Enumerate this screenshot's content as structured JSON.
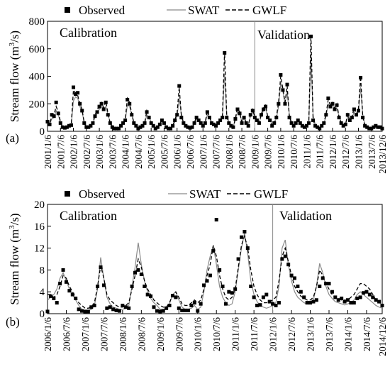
{
  "chart_data": [
    {
      "type": "line",
      "panel_label": "(a)",
      "ylabel_main": "Stream flow (m",
      "ylabel_sup": "3",
      "ylabel_tail": "/s)",
      "ylim": [
        0,
        800
      ],
      "yticks": [
        0,
        200,
        400,
        600,
        800
      ],
      "x_range_months": [
        0,
        155
      ],
      "xticks": [
        "2001/1/6",
        "2001/7/6",
        "2002/1/6",
        "2002/7/6",
        "2003/1/6",
        "2003/7/6",
        "2004/1/6",
        "2004/7/6",
        "2005/1/6",
        "2005/7/6",
        "2006/1/6",
        "2006/7/6",
        "2007/1/6",
        "2007/7/6",
        "2008/1/6",
        "2008/7/6",
        "2009/1/6",
        "2009/7/6",
        "2010/1/6",
        "2010/7/6",
        "2011/1/6",
        "2011/7/6",
        "2012/1/6",
        "2012/7/6",
        "2013/1/6",
        "2013/7/6",
        "2013/12/6"
      ],
      "legend": {
        "observed": "Observed",
        "swat": "SWAT",
        "gwlf": "GWLF",
        "placement": "top"
      },
      "annotations": {
        "calibration": "Calibration",
        "validation": "Validation"
      },
      "divider_month": 96,
      "series_names": [
        "Observed",
        "SWAT",
        "GWLF"
      ],
      "observed": [
        70,
        50,
        120,
        110,
        210,
        130,
        60,
        30,
        25,
        30,
        40,
        45,
        320,
        270,
        280,
        200,
        150,
        60,
        30,
        30,
        40,
        60,
        110,
        140,
        180,
        200,
        160,
        210,
        120,
        60,
        30,
        20,
        20,
        20,
        40,
        60,
        80,
        230,
        200,
        120,
        60,
        40,
        20,
        30,
        40,
        60,
        140,
        100,
        60,
        40,
        20,
        30,
        50,
        80,
        60,
        30,
        20,
        20,
        40,
        80,
        120,
        330,
        100,
        60,
        40,
        30,
        25,
        30,
        60,
        100,
        80,
        60,
        40,
        60,
        140,
        100,
        60,
        50,
        40,
        60,
        80,
        100,
        570,
        100,
        60,
        40,
        30,
        90,
        160,
        130,
        60,
        100,
        60,
        40,
        120,
        150,
        100,
        80,
        60,
        120,
        160,
        180,
        100,
        80,
        40,
        60,
        100,
        200,
        410,
        300,
        200,
        340,
        100,
        60,
        40,
        60,
        80,
        60,
        40,
        30,
        40,
        60,
        690,
        80,
        40,
        30,
        20,
        40,
        60,
        120,
        240,
        180,
        200,
        160,
        190,
        100,
        60,
        40,
        50,
        120,
        80,
        100,
        160,
        120,
        150,
        390,
        100,
        40,
        30,
        20,
        20,
        30,
        40,
        30,
        30,
        20
      ],
      "swat": [
        60,
        50,
        90,
        100,
        150,
        120,
        60,
        35,
        28,
        30,
        40,
        48,
        220,
        250,
        240,
        180,
        140,
        70,
        40,
        35,
        45,
        60,
        100,
        130,
        160,
        180,
        160,
        180,
        120,
        70,
        40,
        28,
        24,
        24,
        40,
        55,
        80,
        190,
        180,
        120,
        70,
        45,
        28,
        30,
        42,
        58,
        120,
        100,
        70,
        45,
        28,
        30,
        48,
        70,
        60,
        38,
        25,
        25,
        40,
        70,
        110,
        240,
        120,
        70,
        45,
        35,
        30,
        32,
        55,
        90,
        80,
        62,
        45,
        60,
        120,
        100,
        68,
        55,
        45,
        60,
        78,
        100,
        420,
        120,
        70,
        45,
        35,
        80,
        140,
        130,
        70,
        95,
        68,
        48,
        110,
        140,
        110,
        85,
        65,
        110,
        150,
        160,
        110,
        85,
        48,
        58,
        95,
        180,
        350,
        290,
        200,
        290,
        120,
        68,
        45,
        58,
        78,
        62,
        45,
        35,
        42,
        58,
        560,
        110,
        52,
        35,
        28,
        40,
        58,
        110,
        200,
        170,
        190,
        160,
        170,
        110,
        68,
        48,
        52,
        105,
        82,
        98,
        140,
        120,
        140,
        320,
        120,
        50,
        35,
        26,
        24,
        30,
        38,
        32,
        30,
        24
      ],
      "gwlf": [
        80,
        55,
        110,
        120,
        180,
        140,
        70,
        30,
        20,
        25,
        45,
        50,
        300,
        280,
        260,
        200,
        160,
        60,
        28,
        25,
        40,
        65,
        120,
        150,
        190,
        210,
        170,
        220,
        130,
        60,
        28,
        18,
        18,
        18,
        40,
        65,
        85,
        240,
        210,
        130,
        60,
        38,
        18,
        28,
        42,
        62,
        150,
        110,
        60,
        38,
        18,
        28,
        52,
        85,
        65,
        28,
        18,
        18,
        40,
        85,
        130,
        320,
        110,
        60,
        38,
        28,
        22,
        28,
        62,
        105,
        85,
        62,
        38,
        62,
        150,
        105,
        60,
        48,
        38,
        62,
        85,
        110,
        580,
        110,
        60,
        38,
        28,
        95,
        170,
        140,
        62,
        105,
        62,
        38,
        125,
        160,
        105,
        82,
        60,
        125,
        170,
        190,
        105,
        82,
        38,
        62,
        105,
        210,
        400,
        310,
        210,
        330,
        105,
        62,
        38,
        62,
        82,
        62,
        38,
        28,
        38,
        62,
        700,
        85,
        38,
        28,
        18,
        38,
        62,
        125,
        230,
        190,
        210,
        170,
        200,
        105,
        62,
        38,
        48,
        125,
        82,
        105,
        170,
        125,
        160,
        400,
        105,
        38,
        28,
        18,
        18,
        28,
        38,
        28,
        28,
        18
      ]
    },
    {
      "type": "line",
      "panel_label": "(b)",
      "ylabel_main": "Stream flow (m",
      "ylabel_sup": "3",
      "ylabel_tail": "/s)",
      "ylim": [
        0,
        20
      ],
      "yticks": [
        0,
        4,
        8,
        12,
        16,
        20
      ],
      "x_range_months": [
        0,
        107
      ],
      "xticks": [
        "2006/1/6",
        "2006/7/6",
        "2007/1/6",
        "2007/7/6",
        "2008/1/6",
        "2008/7/6",
        "2009/1/6",
        "2009/7/6",
        "2010/1/6",
        "2010/7/6",
        "2011/1/6",
        "2011/7/6",
        "2012/1/6",
        "2012/7/6",
        "2013/1/6",
        "2013/7/6",
        "2014/1/6",
        "2014/7/6",
        "2014/12/6"
      ],
      "legend": {
        "observed": "Observed",
        "swat": "SWAT",
        "gwlf": "GWLF",
        "placement": "top"
      },
      "annotations": {
        "calibration": "Calibration",
        "validation": "Validation"
      },
      "divider_month": 72,
      "series_names": [
        "Observed",
        "SWAT",
        "GWLF"
      ],
      "observed": [
        0.4,
        3.2,
        2.8,
        2.0,
        5.5,
        8.0,
        5.8,
        4.2,
        3.5,
        2.8,
        0.8,
        0.5,
        0.4,
        0.4,
        1.2,
        1.5,
        5.0,
        8.5,
        5.2,
        1.0,
        1.2,
        0.8,
        0.6,
        0.5,
        1.5,
        1.2,
        1.0,
        5.0,
        7.5,
        8.0,
        7.2,
        5.0,
        3.5,
        3.2,
        1.2,
        0.5,
        0.4,
        0.5,
        1.0,
        1.5,
        3.3,
        3.0,
        1.0,
        0.6,
        0.6,
        0.6,
        1.5,
        2.0,
        0.5,
        1.8,
        5.2,
        6.0,
        7.0,
        11.5,
        17.2,
        8.0,
        5.0,
        1.8,
        4.0,
        3.8,
        4.5,
        10.0,
        14.0,
        15.0,
        12.0,
        5.0,
        3.0,
        1.5,
        1.6,
        3.0,
        3.5,
        2.2,
        1.8,
        1.5,
        2.0,
        10.0,
        10.5,
        9.0,
        7.0,
        6.5,
        5.0,
        4.0,
        3.0,
        2.0,
        2.0,
        2.2,
        2.5,
        5.0,
        6.5,
        5.5,
        5.5,
        4.0,
        3.0,
        2.5,
        2.8,
        2.2,
        2.5,
        2.0,
        2.0,
        2.8,
        3.0,
        3.8,
        4.0,
        3.5,
        3.0,
        2.5,
        2.2,
        1.5
      ],
      "swat": [
        2.5,
        3.0,
        3.5,
        4.5,
        6.5,
        7.5,
        6.0,
        4.5,
        3.5,
        2.5,
        1.5,
        0.8,
        0.5,
        0.5,
        0.8,
        1.5,
        4.5,
        10.3,
        6.5,
        3.0,
        1.8,
        1.2,
        1.0,
        0.8,
        0.8,
        1.0,
        1.5,
        5.0,
        8.5,
        13.0,
        9.0,
        6.0,
        4.0,
        2.8,
        2.0,
        1.5,
        0.8,
        0.8,
        1.0,
        1.8,
        3.5,
        4.0,
        2.5,
        1.2,
        0.8,
        0.8,
        1.0,
        1.5,
        0.8,
        1.2,
        4.0,
        8.0,
        10.5,
        12.5,
        9.0,
        5.0,
        3.0,
        2.0,
        1.5,
        1.8,
        4.0,
        8.0,
        12.0,
        14.8,
        11.0,
        6.0,
        3.5,
        2.2,
        1.5,
        1.2,
        1.0,
        1.2,
        1.5,
        2.0,
        5.0,
        12.0,
        13.5,
        9.0,
        6.0,
        4.0,
        3.0,
        2.5,
        2.0,
        1.8,
        1.8,
        2.5,
        5.0,
        9.2,
        7.5,
        5.0,
        3.5,
        2.8,
        2.2,
        2.0,
        1.8,
        1.6,
        1.8,
        2.0,
        2.5,
        3.5,
        4.0,
        3.5,
        3.0,
        2.5,
        2.0,
        1.5,
        1.2,
        1.0
      ],
      "gwlf": [
        3.5,
        3.5,
        3.0,
        3.5,
        5.0,
        7.0,
        6.5,
        5.0,
        4.0,
        3.0,
        2.0,
        1.5,
        1.0,
        1.0,
        1.2,
        2.0,
        5.0,
        8.8,
        6.5,
        3.5,
        2.5,
        2.0,
        1.5,
        1.2,
        1.2,
        1.5,
        2.0,
        4.5,
        7.0,
        10.0,
        8.5,
        6.0,
        4.5,
        3.5,
        2.5,
        2.0,
        1.5,
        1.2,
        1.2,
        2.0,
        3.5,
        4.0,
        3.0,
        1.8,
        1.5,
        1.5,
        2.0,
        2.5,
        2.0,
        2.5,
        4.5,
        7.0,
        9.0,
        12.5,
        10.5,
        7.0,
        4.5,
        3.0,
        2.5,
        3.0,
        4.5,
        8.5,
        12.5,
        14.2,
        12.0,
        8.0,
        5.0,
        3.5,
        2.5,
        2.0,
        2.0,
        2.2,
        2.5,
        3.0,
        6.0,
        10.5,
        12.0,
        9.5,
        7.0,
        5.0,
        4.0,
        3.2,
        2.8,
        2.5,
        2.5,
        3.0,
        5.0,
        8.0,
        7.0,
        5.5,
        4.5,
        3.5,
        3.0,
        2.8,
        2.5,
        2.5,
        2.5,
        3.0,
        3.5,
        4.5,
        5.5,
        5.5,
        5.0,
        4.5,
        3.5,
        2.5,
        2.0,
        1.8
      ]
    }
  ]
}
